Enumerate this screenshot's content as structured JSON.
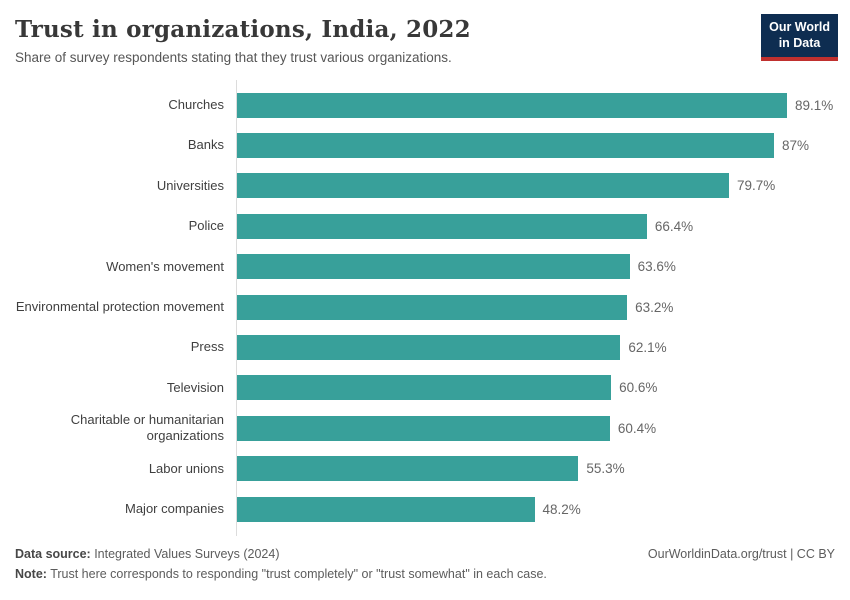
{
  "header": {
    "title": "Trust in organizations, India, 2022",
    "subtitle": "Share of survey respondents stating that they trust various organizations.",
    "logo": {
      "line1": "Our World",
      "line2": "in Data",
      "bg_color": "#0e2d51",
      "accent_color": "#c0302e"
    }
  },
  "chart_data": {
    "type": "bar",
    "orientation": "horizontal",
    "title": "Trust in organizations, India, 2022",
    "xlabel": "",
    "ylabel": "",
    "grid": false,
    "legend": "none",
    "axis_ticks": "none",
    "bar_color": "#38a09a",
    "categories": [
      "Churches",
      "Banks",
      "Universities",
      "Police",
      "Women's movement",
      "Environmental protection movement",
      "Press",
      "Television",
      "Charitable or humanitarian organizations",
      "Labor unions",
      "Major companies"
    ],
    "values": [
      89.1,
      87,
      79.7,
      66.4,
      63.6,
      63.2,
      62.1,
      60.6,
      60.4,
      55.3,
      48.2
    ],
    "value_labels": [
      "89.1%",
      "87%",
      "79.7%",
      "66.4%",
      "63.6%",
      "63.2%",
      "62.1%",
      "60.6%",
      "60.4%",
      "55.3%",
      "48.2%"
    ]
  },
  "footer": {
    "datasource_label": "Data source:",
    "datasource_text": " Integrated Values Surveys (2024)",
    "note_label": "Note:",
    "note_text": " Trust here corresponds to responding \"trust completely\" or \"trust somewhat\" in each case.",
    "link_text": "OurWorldinData.org/trust | CC BY"
  }
}
